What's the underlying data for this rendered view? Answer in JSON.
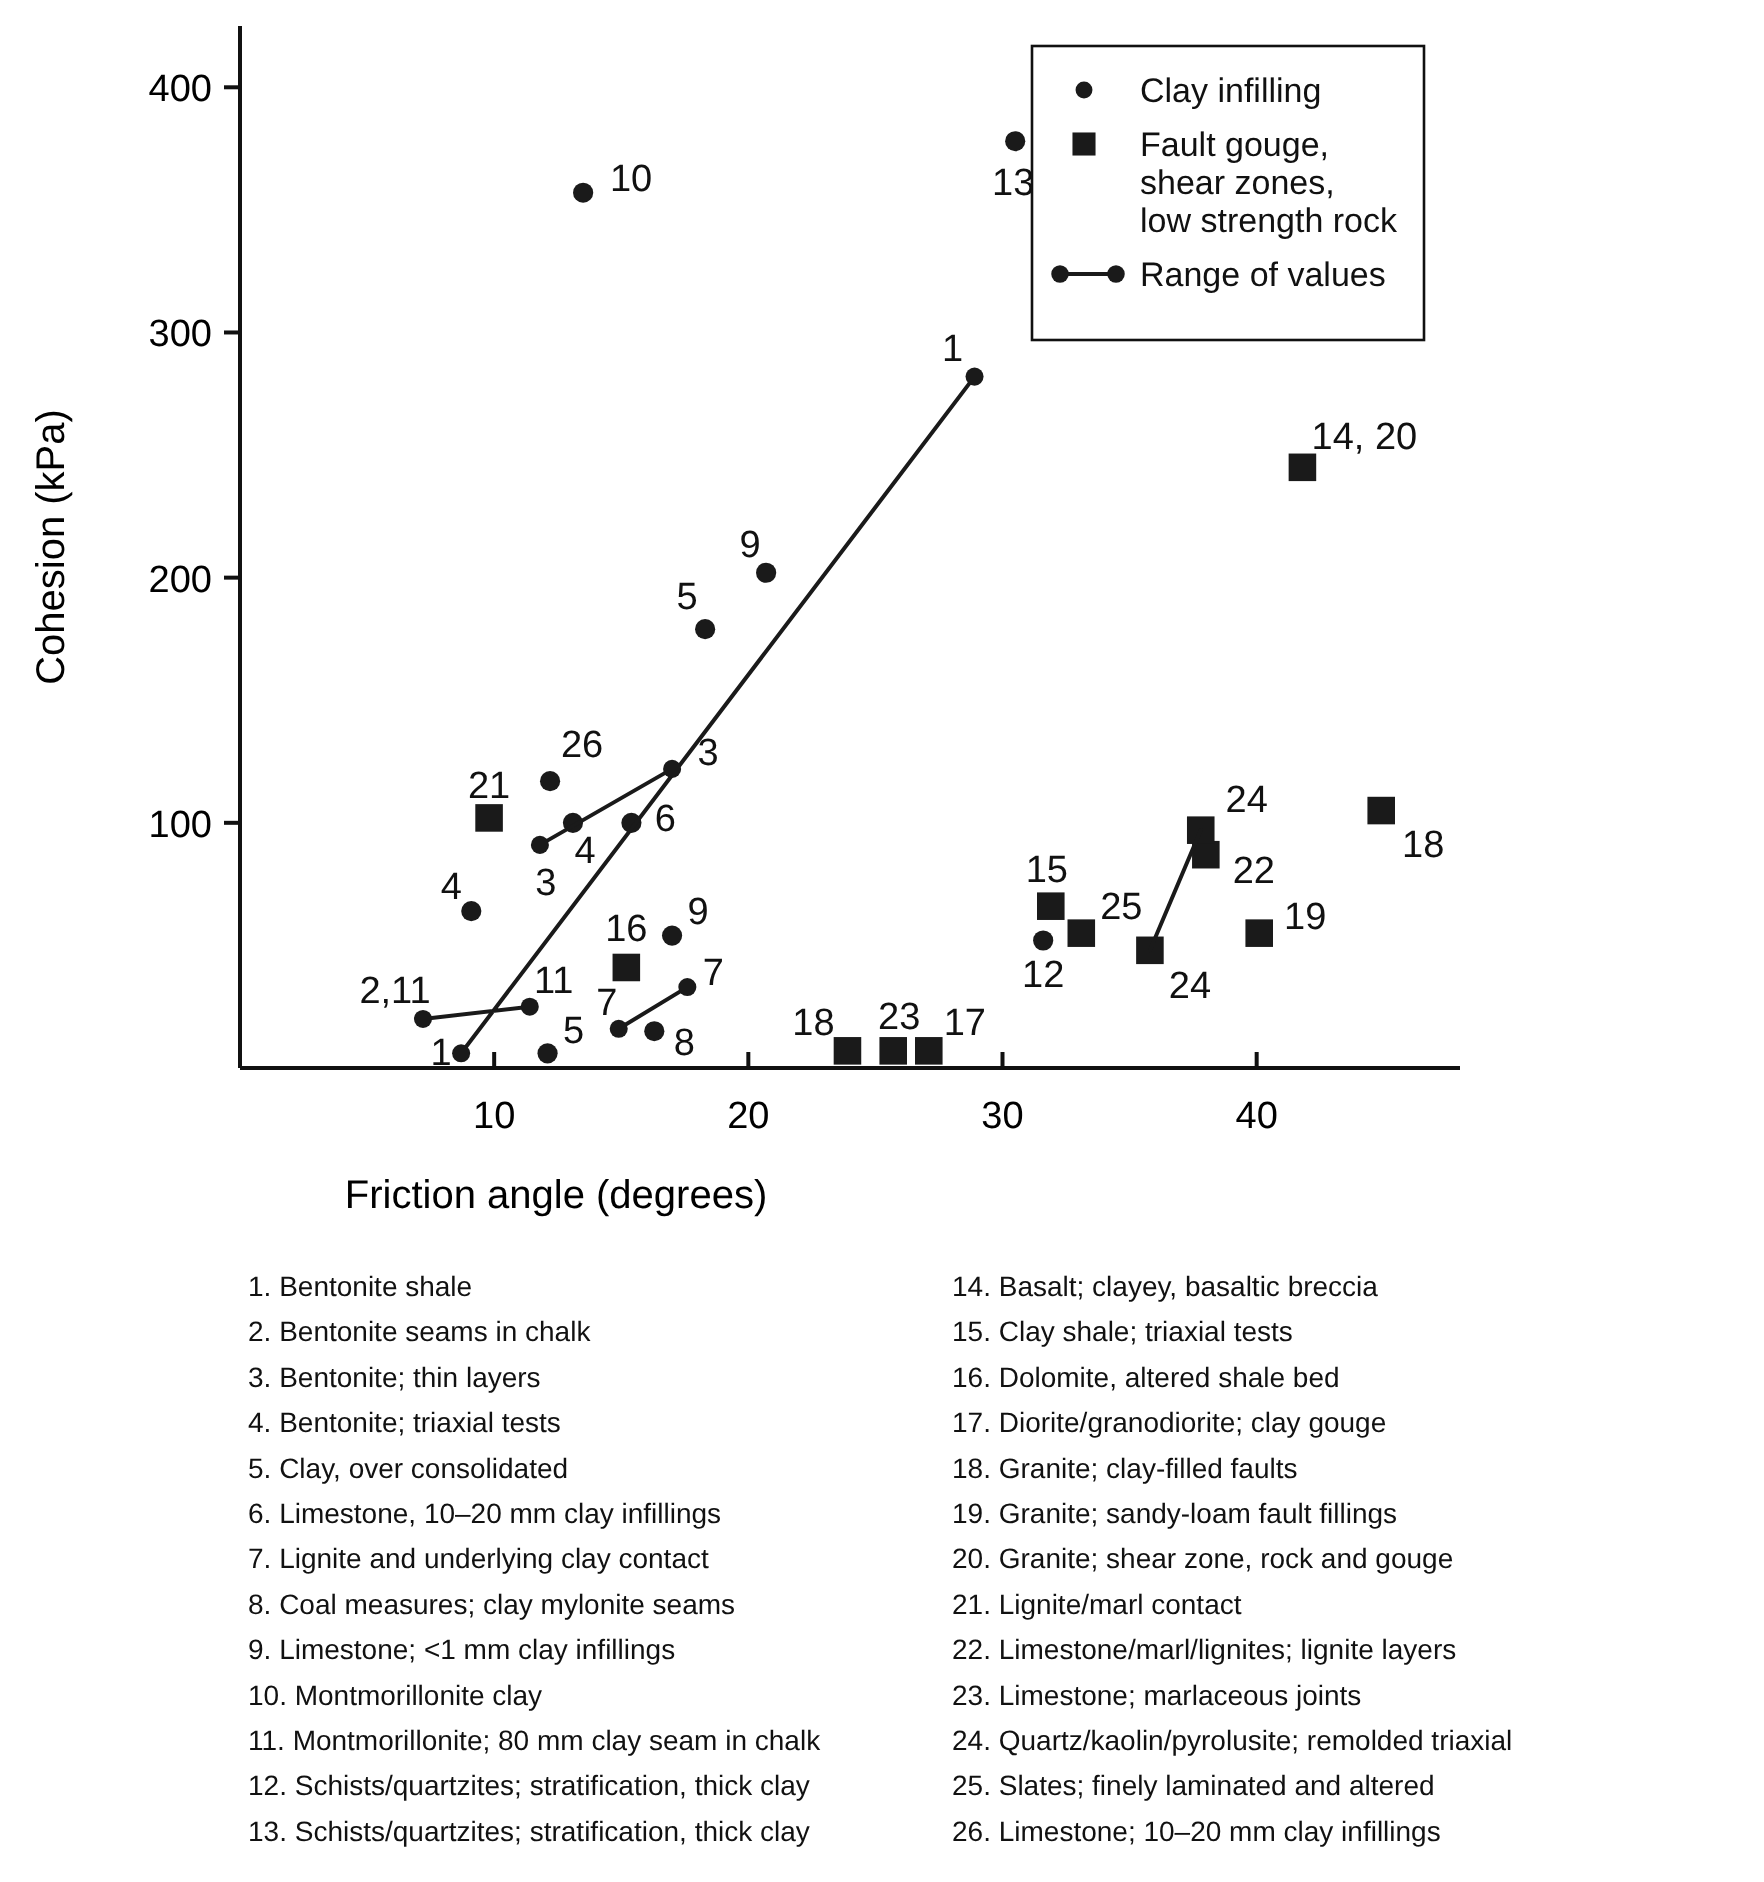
{
  "chart_data": {
    "type": "scatter",
    "xlabel": "Friction angle (degrees)",
    "ylabel": "Cohesion (kPa)",
    "xlim": [
      0,
      48
    ],
    "xticks": [
      10,
      20,
      30,
      40
    ],
    "ylim": [
      0,
      425
    ],
    "yticks": [
      100,
      200,
      300,
      400
    ],
    "grid": false,
    "legend": "top right",
    "series": [
      {
        "name": "Clay infilling",
        "marker": "circle",
        "color": "#1a1a1a",
        "x": [
          13.5,
          30.5,
          20.7,
          18.3,
          9.1,
          13.1,
          15.4,
          12.2,
          17.0,
          16.3,
          12.1,
          31.6
        ],
        "values": [
          357,
          378,
          202,
          179,
          64,
          100,
          100,
          117,
          54,
          15,
          6,
          52
        ]
      },
      {
        "name": "Fault gouge, shear zones, low strength rock",
        "marker": "square",
        "color": "#1a1a1a",
        "x": [
          9.8,
          15.2,
          23.9,
          25.7,
          27.1,
          41.8,
          44.9,
          38.0,
          31.9,
          33.1,
          40.1,
          35.8,
          37.8
        ],
        "values": [
          102,
          41,
          7,
          7,
          7,
          245,
          105,
          87,
          66,
          55,
          55,
          48,
          97
        ]
      },
      {
        "name": "Range of values",
        "type": "line",
        "marker": "circle",
        "color": "#1a1a1a",
        "x": [
          8.7,
          28.9,
          null,
          11.8,
          17.0,
          null,
          7.2,
          11.4,
          null,
          14.9,
          17.6
        ],
        "values": [
          6,
          282,
          null,
          91,
          122,
          null,
          20,
          25,
          null,
          16,
          33
        ]
      },
      {
        "type": "line",
        "marker": "none",
        "color": "#1a1a1a",
        "x": [
          35.8,
          37.8
        ],
        "values": [
          48,
          97
        ]
      }
    ],
    "annotations": [
      {
        "text": "10",
        "x": 13.5,
        "y": 357
      },
      {
        "text": "13",
        "x": 30.5,
        "y": 378
      },
      {
        "text": "9",
        "x": 20.7,
        "y": 202
      },
      {
        "text": "5",
        "x": 18.3,
        "y": 179
      },
      {
        "text": "4",
        "x": 9.1,
        "y": 64
      },
      {
        "text": "4",
        "x": 13.1,
        "y": 100
      },
      {
        "text": "6",
        "x": 15.4,
        "y": 100
      },
      {
        "text": "26",
        "x": 12.2,
        "y": 117
      },
      {
        "text": "9",
        "x": 17.0,
        "y": 54
      },
      {
        "text": "8",
        "x": 16.3,
        "y": 15
      },
      {
        "text": "5",
        "x": 12.1,
        "y": 6
      },
      {
        "text": "12",
        "x": 31.6,
        "y": 52
      },
      {
        "text": "21",
        "x": 9.8,
        "y": 102
      },
      {
        "text": "16",
        "x": 15.2,
        "y": 41
      },
      {
        "text": "18",
        "x": 23.9,
        "y": 7
      },
      {
        "text": "23",
        "x": 25.7,
        "y": 7
      },
      {
        "text": "17",
        "x": 27.1,
        "y": 7
      },
      {
        "text": "14, 20",
        "x": 41.8,
        "y": 245
      },
      {
        "text": "18",
        "x": 44.9,
        "y": 105
      },
      {
        "text": "22",
        "x": 38.0,
        "y": 87
      },
      {
        "text": "15",
        "x": 31.9,
        "y": 66
      },
      {
        "text": "25",
        "x": 33.1,
        "y": 55
      },
      {
        "text": "19",
        "x": 40.1,
        "y": 55
      },
      {
        "text": "24",
        "x": 35.8,
        "y": 48
      },
      {
        "text": "24",
        "x": 37.8,
        "y": 97
      },
      {
        "text": "1",
        "x": 8.7,
        "y": 6
      },
      {
        "text": "1",
        "x": 28.9,
        "y": 282
      },
      {
        "text": "3",
        "x": 11.8,
        "y": 91
      },
      {
        "text": "3",
        "x": 17.0,
        "y": 122
      },
      {
        "text": "2,11",
        "x": 7.2,
        "y": 20
      },
      {
        "text": "11",
        "x": 11.4,
        "y": 25
      },
      {
        "text": "7",
        "x": 14.9,
        "y": 16
      },
      {
        "text": "7",
        "x": 17.6,
        "y": 33
      },
      "1. Bentonite shale",
      "2. Bentonite seams in chalk",
      "3. Bentonite; thin layers",
      "4. Bentonite; triaxial tests",
      "5. Clay, over consolidated",
      "6. Limestone, 10–20 mm clay infillings",
      "7. Lignite and underlying clay contact",
      "8. Coal measures; clay mylonite seams",
      "9. Limestone; <1 mm clay infillings",
      "10. Montmorillonite clay",
      "11. Montmorillonite; 80 mm clay seam in chalk",
      "12. Schists/quartzites; stratification, thick clay",
      "13. Schists/quartzites; stratification, thick clay",
      "14. Basalt; clayey, basaltic breccia",
      "15. Clay shale; triaxial tests",
      "16. Dolomite, altered shale bed",
      "17. Diorite/granodiorite; clay gouge",
      "18. Granite; clay-filled faults",
      "19. Granite; sandy-loam fault fillings",
      "20. Granite; shear zone, rock and gouge",
      "21. Lignite/marl contact",
      "22. Limestone/marl/lignites; lignite layers",
      "23. Limestone; marlaceous joints",
      "24. Quartz/kaolin/pyrolusite; remolded triaxial",
      "25. Slates; finely laminated and altered",
      "26. Limestone; 10–20 mm clay infillings"
    ]
  }
}
